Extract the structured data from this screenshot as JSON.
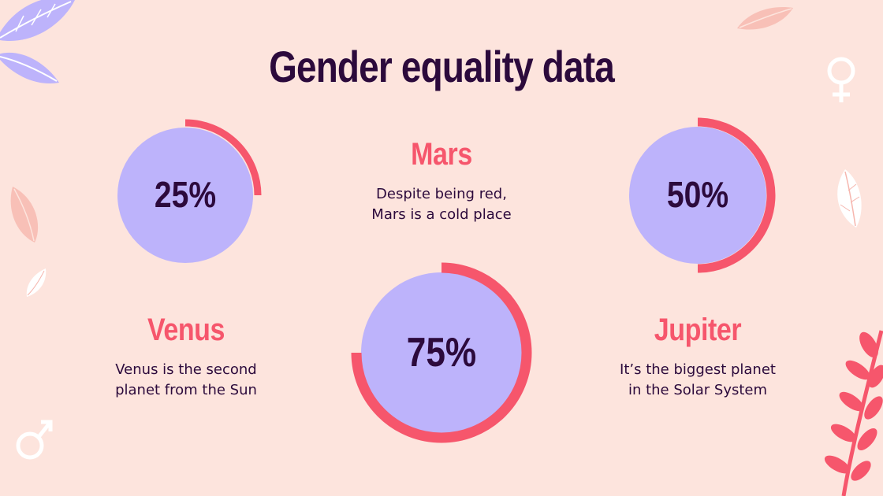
{
  "colors": {
    "background": "#FDE4DD",
    "title": "#2C0A3C",
    "accent": "#F6566C",
    "circle": "#BDB3FB",
    "text": "#2C0A3C",
    "leaf_purple": "#BDB3FB",
    "leaf_pink": "#F6B6AE",
    "leaf_white": "#FFFFFF"
  },
  "slide": {
    "title": "Gender equality data",
    "items": [
      {
        "heading": "Mars",
        "desc": [
          "Despite being red,",
          "Mars is a cold place"
        ]
      },
      {
        "heading": "Venus",
        "desc": [
          "Venus is the second",
          "planet from the Sun"
        ]
      },
      {
        "heading": "Jupiter",
        "desc": [
          "It’s the biggest planet",
          "in the Solar System"
        ]
      }
    ]
  },
  "chart_data": {
    "type": "pie",
    "title": "Gender equality data",
    "series": [
      {
        "name": "gauge-1",
        "value": 25,
        "label": "25%"
      },
      {
        "name": "gauge-2",
        "value": 50,
        "label": "50%"
      },
      {
        "name": "gauge-3",
        "value": 75,
        "label": "75%"
      }
    ],
    "unit": "%",
    "max": 100
  },
  "icons": [
    "female-symbol-icon",
    "male-symbol-icon",
    "leaf-icon"
  ]
}
